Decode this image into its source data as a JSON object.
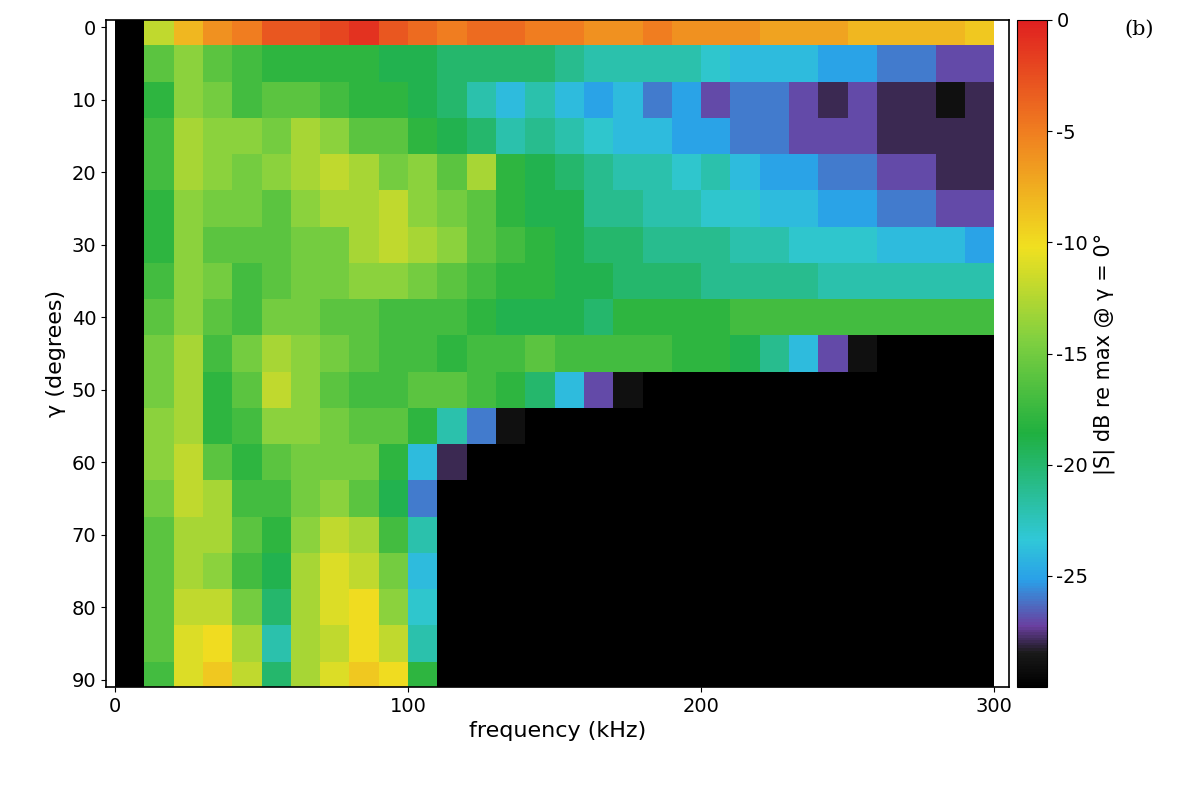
{
  "chart_data": {
    "type": "heatmap",
    "xlabel": "frequency (kHz)",
    "ylabel": "γ (degrees)",
    "annotation": "(b)",
    "xlim": [
      -3,
      305
    ],
    "xticks": [
      0,
      100,
      200,
      300
    ],
    "ylim": [
      91,
      -1
    ],
    "yticks": [
      0,
      10,
      20,
      30,
      40,
      50,
      60,
      70,
      80,
      90
    ],
    "x": [
      5,
      15,
      25,
      35,
      45,
      55,
      65,
      75,
      85,
      95,
      105,
      115,
      125,
      135,
      145,
      155,
      165,
      175,
      185,
      195,
      205,
      215,
      225,
      235,
      245,
      255,
      265,
      275,
      285,
      295
    ],
    "y": [
      0,
      5,
      10,
      15,
      20,
      25,
      30,
      35,
      40,
      45,
      50,
      55,
      60,
      65,
      70,
      75,
      80,
      85,
      90
    ],
    "cells": [
      [
        -30,
        -12,
        -8,
        -6,
        -5,
        -3,
        -3,
        -2,
        -1,
        -3,
        -4,
        -5,
        -4,
        -4,
        -5,
        -5,
        -6,
        -6,
        -5,
        -6,
        -6,
        -6,
        -7,
        -7,
        -7,
        -8,
        -8,
        -8,
        -8,
        -9
      ],
      [
        -30,
        -16,
        -14,
        -16,
        -17,
        -18,
        -18,
        -18,
        -18,
        -19,
        -19,
        -20,
        -20,
        -20,
        -20,
        -21,
        -22,
        -22,
        -22,
        -22,
        -23,
        -24,
        -24,
        -24,
        -25,
        -25,
        -26,
        -26,
        -27,
        -27
      ],
      [
        -30,
        -18,
        -14,
        -15,
        -17,
        -16,
        -16,
        -17,
        -18,
        -18,
        -19,
        -20,
        -22,
        -24,
        -22,
        -24,
        -25,
        -24,
        -26,
        -25,
        -27,
        -26,
        -26,
        -27,
        -28,
        -27,
        -28,
        -28,
        -29,
        -28
      ],
      [
        -30,
        -17,
        -13,
        -14,
        -14,
        -15,
        -13,
        -14,
        -16,
        -16,
        -18,
        -19,
        -20,
        -22,
        -21,
        -22,
        -23,
        -24,
        -24,
        -25,
        -25,
        -26,
        -26,
        -27,
        -27,
        -27,
        -28,
        -28,
        -28,
        -28
      ],
      [
        -30,
        -17,
        -13,
        -14,
        -15,
        -14,
        -13,
        -12,
        -13,
        -15,
        -14,
        -16,
        -13,
        -18,
        -19,
        -20,
        -21,
        -22,
        -22,
        -23,
        -22,
        -24,
        -25,
        -25,
        -26,
        -26,
        -27,
        -27,
        -28,
        -28
      ],
      [
        -30,
        -18,
        -14,
        -15,
        -15,
        -16,
        -14,
        -13,
        -13,
        -12,
        -14,
        -15,
        -16,
        -18,
        -19,
        -19,
        -21,
        -21,
        -22,
        -22,
        -23,
        -23,
        -24,
        -24,
        -25,
        -25,
        -26,
        -26,
        -27,
        -27
      ],
      [
        -30,
        -18,
        -14,
        -16,
        -16,
        -16,
        -15,
        -15,
        -13,
        -12,
        -13,
        -14,
        -16,
        -17,
        -18,
        -19,
        -20,
        -20,
        -21,
        -21,
        -21,
        -22,
        -22,
        -23,
        -23,
        -23,
        -24,
        -24,
        -24,
        -25
      ],
      [
        -30,
        -17,
        -14,
        -15,
        -17,
        -16,
        -15,
        -15,
        -14,
        -14,
        -15,
        -16,
        -17,
        -18,
        -18,
        -19,
        -19,
        -20,
        -20,
        -20,
        -21,
        -21,
        -21,
        -21,
        -22,
        -22,
        -22,
        -22,
        -22,
        -22
      ],
      [
        -30,
        -16,
        -14,
        -16,
        -17,
        -15,
        -15,
        -16,
        -16,
        -17,
        -17,
        -17,
        -18,
        -19,
        -19,
        -19,
        -20,
        -18,
        -18,
        -18,
        -18,
        -17,
        -17,
        -17,
        -17,
        -17,
        -17,
        -17,
        -17,
        -17
      ],
      [
        -30,
        -15,
        -13,
        -17,
        -15,
        -13,
        -14,
        -15,
        -16,
        -17,
        -17,
        -18,
        -17,
        -17,
        -16,
        -17,
        -17,
        -17,
        -17,
        -18,
        -18,
        -19,
        -21,
        -24,
        -27,
        -29,
        -30,
        -30,
        -30,
        -30
      ],
      [
        -30,
        -15,
        -13,
        -18,
        -16,
        -12,
        -14,
        -16,
        -17,
        -17,
        -16,
        -16,
        -17,
        -18,
        -20,
        -24,
        -27,
        -29,
        -30,
        -30,
        -30,
        -30,
        -30,
        -30,
        -30,
        -30,
        -30,
        -30,
        -30,
        -30
      ],
      [
        -30,
        -14,
        -13,
        -18,
        -17,
        -14,
        -14,
        -15,
        -16,
        -16,
        -18,
        -22,
        -26,
        -29,
        -30,
        -30,
        -30,
        -30,
        -30,
        -30,
        -30,
        -30,
        -30,
        -30,
        -30,
        -30,
        -30,
        -30,
        -30,
        -30
      ],
      [
        -30,
        -14,
        -12,
        -16,
        -18,
        -16,
        -15,
        -15,
        -15,
        -18,
        -24,
        -28,
        -30,
        -30,
        -30,
        -30,
        -30,
        -30,
        -30,
        -30,
        -30,
        -30,
        -30,
        -30,
        -30,
        -30,
        -30,
        -30,
        -30,
        -30
      ],
      [
        -30,
        -15,
        -12,
        -13,
        -17,
        -17,
        -15,
        -14,
        -16,
        -19,
        -26,
        -30,
        -30,
        -30,
        -30,
        -30,
        -30,
        -30,
        -30,
        -30,
        -30,
        -30,
        -30,
        -30,
        -30,
        -30,
        -30,
        -30,
        -30,
        -30
      ],
      [
        -30,
        -16,
        -13,
        -13,
        -16,
        -18,
        -14,
        -12,
        -13,
        -17,
        -22,
        -30,
        -30,
        -30,
        -30,
        -30,
        -30,
        -30,
        -30,
        -30,
        -30,
        -30,
        -30,
        -30,
        -30,
        -30,
        -30,
        -30,
        -30,
        -30
      ],
      [
        -30,
        -16,
        -13,
        -14,
        -17,
        -19,
        -13,
        -11,
        -12,
        -15,
        -24,
        -30,
        -30,
        -30,
        -30,
        -30,
        -30,
        -30,
        -30,
        -30,
        -30,
        -30,
        -30,
        -30,
        -30,
        -30,
        -30,
        -30,
        -30,
        -30
      ],
      [
        -30,
        -16,
        -12,
        -12,
        -15,
        -20,
        -13,
        -11,
        -10,
        -14,
        -23,
        -30,
        -30,
        -30,
        -30,
        -30,
        -30,
        -30,
        -30,
        -30,
        -30,
        -30,
        -30,
        -30,
        -30,
        -30,
        -30,
        -30,
        -30,
        -30
      ],
      [
        -30,
        -16,
        -11,
        -10,
        -13,
        -22,
        -13,
        -12,
        -10,
        -12,
        -22,
        -30,
        -30,
        -30,
        -30,
        -30,
        -30,
        -30,
        -30,
        -30,
        -30,
        -30,
        -30,
        -30,
        -30,
        -30,
        -30,
        -30,
        -30,
        -30
      ],
      [
        -30,
        -17,
        -11,
        -9,
        -12,
        -20,
        -13,
        -11,
        -9,
        -10,
        -18,
        -30,
        -30,
        -30,
        -30,
        -30,
        -30,
        -30,
        -30,
        -30,
        -30,
        -30,
        -30,
        -30,
        -30,
        -30,
        -30,
        -30,
        -30,
        -30
      ]
    ],
    "colorbar": {
      "range": [
        -30,
        0
      ],
      "ticks": [
        0,
        -5,
        -10,
        -15,
        -20,
        -25
      ],
      "label": "|S| dB re max @ γ = 0°"
    }
  }
}
